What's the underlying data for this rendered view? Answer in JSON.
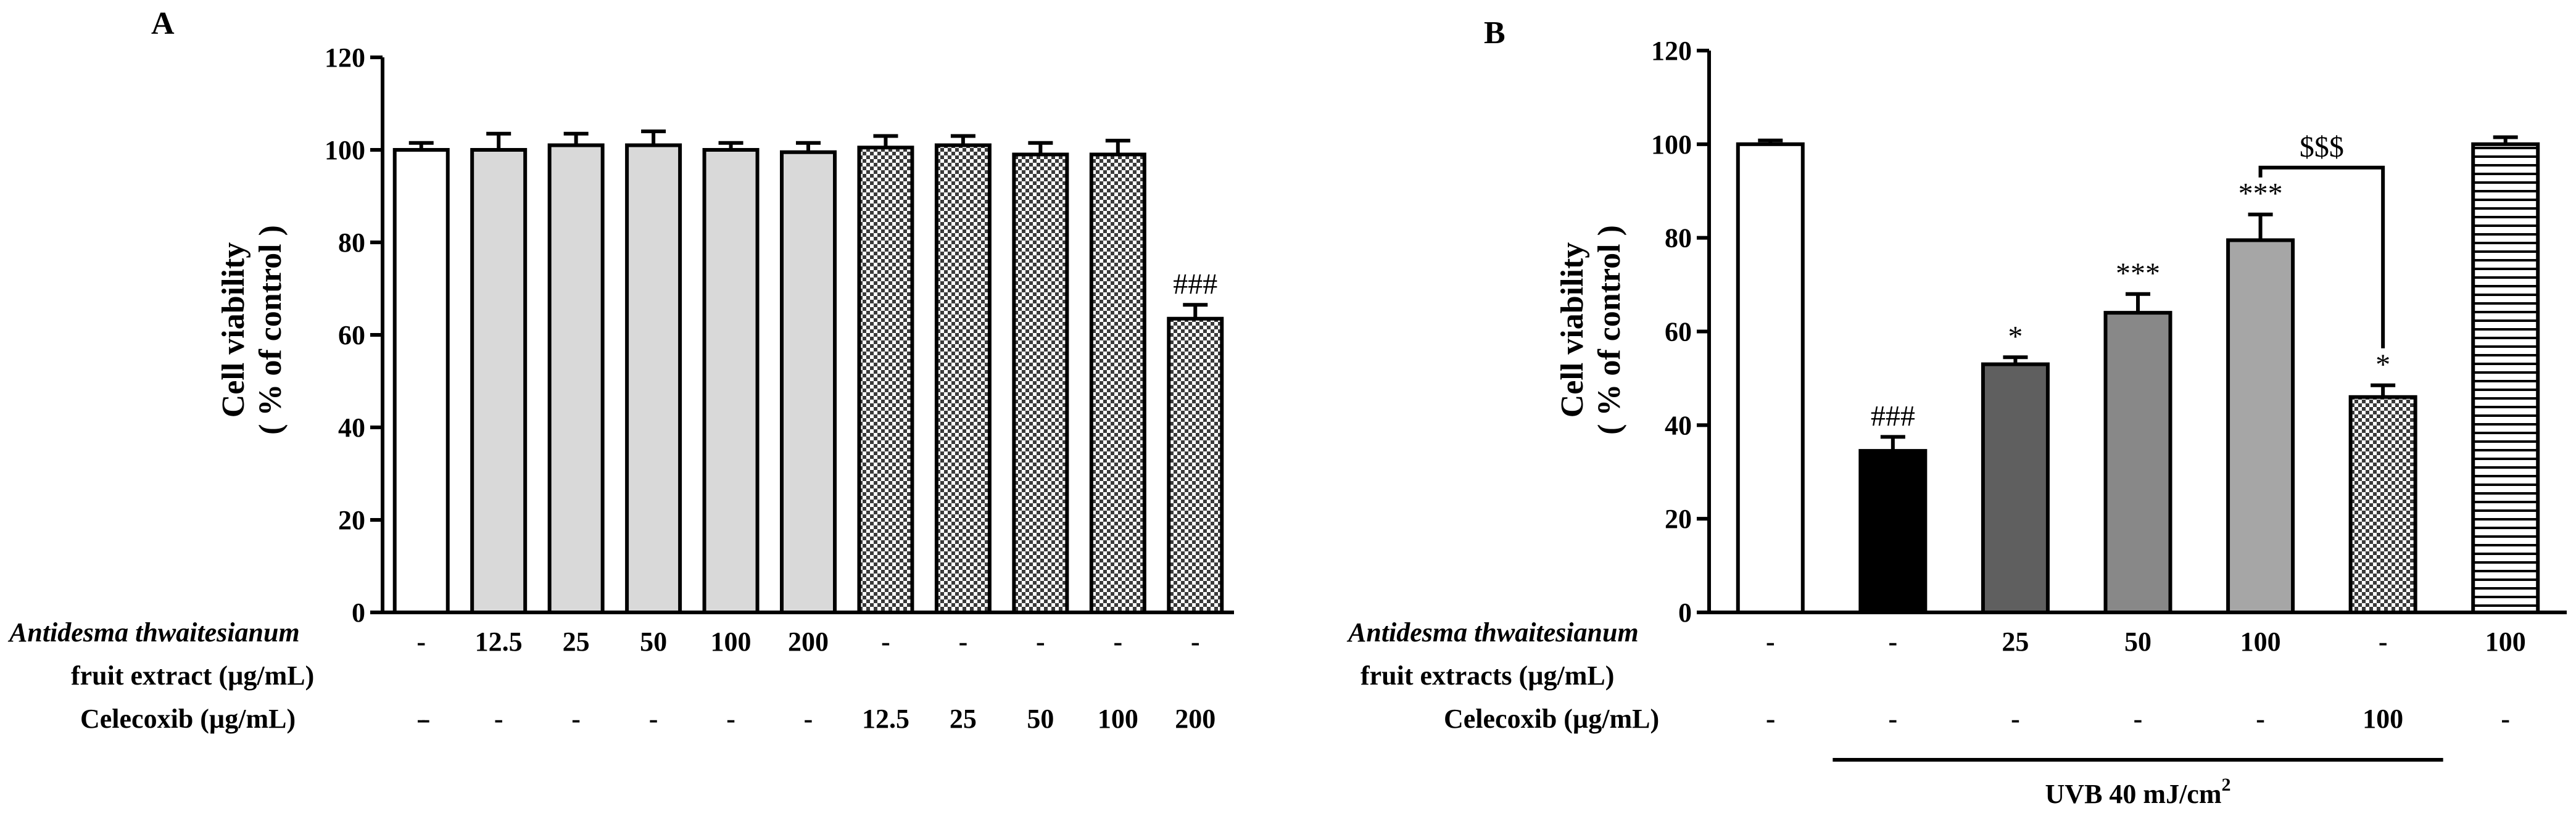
{
  "chart_data": [
    {
      "type": "bar",
      "panel": "A",
      "ylabel_line1": "Cell viability",
      "ylabel_line2": "( % of control )",
      "ylim": [
        0,
        120
      ],
      "yticks": [
        0,
        20,
        40,
        60,
        80,
        100,
        120
      ],
      "colors": {
        "open": "#ffffff",
        "light_gray": "#d9d9d9",
        "hatch_fg": "#333333",
        "hatch_bg": "#ffffff"
      },
      "bars": [
        {
          "value": 100,
          "error": 1.5,
          "fill": "open"
        },
        {
          "value": 100,
          "error": 3.5,
          "fill": "light_gray"
        },
        {
          "value": 101,
          "error": 2.5,
          "fill": "light_gray"
        },
        {
          "value": 101,
          "error": 3.0,
          "fill": "light_gray"
        },
        {
          "value": 100,
          "error": 1.5,
          "fill": "light_gray"
        },
        {
          "value": 99.5,
          "error": 2.0,
          "fill": "light_gray"
        },
        {
          "value": 100.5,
          "error": 2.5,
          "fill": "checker"
        },
        {
          "value": 101,
          "error": 2.0,
          "fill": "checker"
        },
        {
          "value": 99,
          "error": 2.5,
          "fill": "checker"
        },
        {
          "value": 99,
          "error": 3.0,
          "fill": "checker"
        },
        {
          "value": 63.5,
          "error": 3.0,
          "fill": "checker"
        }
      ],
      "annotations": [
        {
          "bar": 10,
          "text": "###"
        }
      ],
      "treatment_rows": [
        {
          "label_italic": "Antidesma thwaitesianum",
          "label_line2": "fruit extract (µg/mL)",
          "values": [
            "-",
            "12.5",
            "25",
            "50",
            "100",
            "200",
            "-",
            "-",
            "-",
            "-",
            "-"
          ]
        },
        {
          "label": "Celecoxib (µg/mL)",
          "values": [
            "-",
            "-",
            "-",
            "-",
            "-",
            "-",
            "12.5",
            "25",
            "50",
            "100",
            "200"
          ]
        }
      ]
    },
    {
      "type": "bar",
      "panel": "B",
      "ylabel_line1": "Cell viability",
      "ylabel_line2": "( % of control )",
      "ylim": [
        0,
        120
      ],
      "yticks": [
        0,
        20,
        40,
        60,
        80,
        100,
        120
      ],
      "colors": {
        "open": "#ffffff",
        "black": "#000000",
        "dark_gray": "#5f5f5f",
        "mid_gray": "#888888",
        "light_gray": "#a6a6a6"
      },
      "bars": [
        {
          "value": 100,
          "error": 0.8,
          "fill": "open"
        },
        {
          "value": 34.5,
          "error": 3.0,
          "fill": "black"
        },
        {
          "value": 53,
          "error": 1.5,
          "fill": "dark_gray"
        },
        {
          "value": 64,
          "error": 4.0,
          "fill": "mid_gray"
        },
        {
          "value": 79.5,
          "error": 5.5,
          "fill": "light_gray"
        },
        {
          "value": 46,
          "error": 2.5,
          "fill": "checker"
        },
        {
          "value": 100,
          "error": 1.5,
          "fill": "hlines"
        }
      ],
      "annotations": [
        {
          "bar": 1,
          "text": "###"
        },
        {
          "bar": 2,
          "text": "*"
        },
        {
          "bar": 3,
          "text": "***"
        },
        {
          "bar": 4,
          "text": "***"
        },
        {
          "bar": 5,
          "text": "*"
        }
      ],
      "bracket": {
        "from_bar": 4,
        "to_bar": 5,
        "y": 95,
        "text": "$$$"
      },
      "treatment_rows": [
        {
          "label_italic": "Antidesma thwaitesianum",
          "label_line2": "fruit extracts (µg/mL)",
          "values": [
            "-",
            "-",
            "25",
            "50",
            "100",
            "-",
            "100"
          ]
        },
        {
          "label": "Celecoxib (µg/mL)",
          "values": [
            "-",
            "-",
            "-",
            "-",
            "-",
            "100",
            "-"
          ]
        }
      ],
      "group_bar": {
        "from_bar": 1,
        "to_bar": 5,
        "label": "UVB 40 mJ/cm",
        "superscript": "2"
      }
    }
  ]
}
